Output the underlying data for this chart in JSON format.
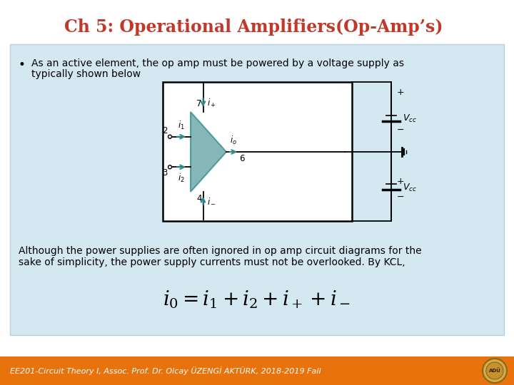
{
  "title": "Ch 5: Operational Amplifiers(Op-Amp’s)",
  "title_color": "#c0392b",
  "title_fontsize": 17,
  "bg_color": "#ffffff",
  "content_box_color": "#b8d9ea",
  "content_box_edge": "#90b8cc",
  "bullet_text_line1": "As an active element, the op amp must be powered by a voltage supply as",
  "bullet_text_line2": "typically shown below",
  "paragraph_line1": "Although the power supplies are often ignored in op amp circuit diagrams for the",
  "paragraph_line2": "sake of simplicity, the power supply currents must not be overlooked. By KCL,",
  "footer_text": "EE201-Circuit Theory I, Assoc. Prof. Dr. Olcay ÜZENGİ AKTÜRK, 2018-2019 Fall",
  "footer_bg": "#e8720c",
  "footer_text_color": "#ffffff",
  "teal_color": "#2e8b8b",
  "opamp_fill": "#5f9ea0",
  "circuit_bg": "#ffffff",
  "circuit_border": "#000000",
  "black": "#000000"
}
